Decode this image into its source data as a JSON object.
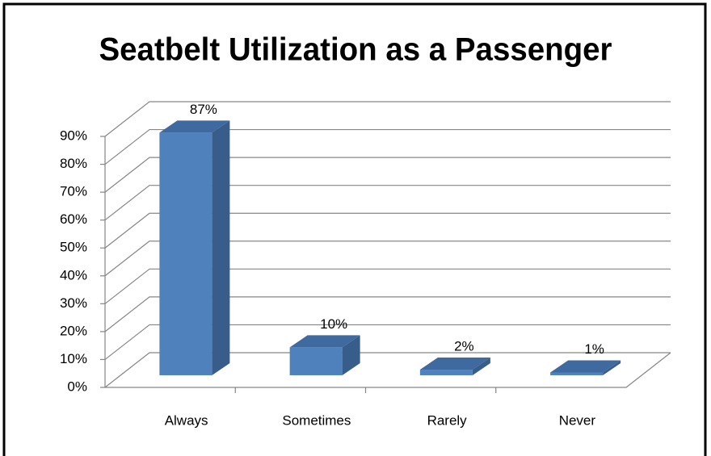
{
  "chart_data": {
    "type": "bar3d",
    "title": "Seatbelt Utilization as a Passenger",
    "categories": [
      "Always",
      "Sometimes",
      "Rarely",
      "Never"
    ],
    "values": [
      87,
      10,
      2,
      1
    ],
    "value_labels": [
      "87%",
      "10%",
      "2%",
      "1%"
    ],
    "color": "#4f81bd",
    "ylim": [
      0,
      90
    ],
    "yticks": [
      {
        "value": 0,
        "label": "0%"
      },
      {
        "value": 10,
        "label": "10%"
      },
      {
        "value": 20,
        "label": "20%"
      },
      {
        "value": 30,
        "label": "30%"
      },
      {
        "value": 40,
        "label": "40%"
      },
      {
        "value": 50,
        "label": "50%"
      },
      {
        "value": 60,
        "label": "60%"
      },
      {
        "value": 70,
        "label": "70%"
      },
      {
        "value": 80,
        "label": "80%"
      },
      {
        "value": 90,
        "label": "90%"
      }
    ],
    "grid": true
  }
}
